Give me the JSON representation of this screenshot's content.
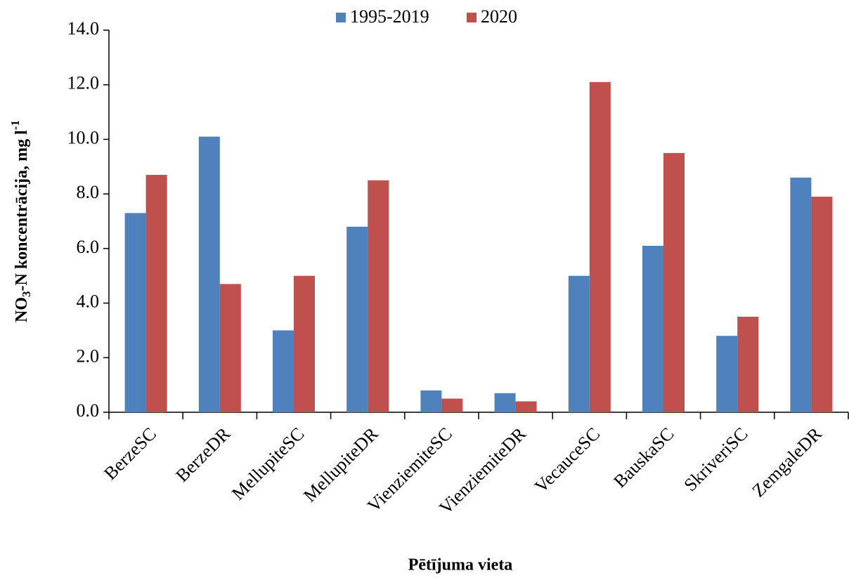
{
  "chart_data": {
    "type": "bar",
    "categories": [
      "BerzeSC",
      "BerzeDR",
      "MellupiteSC",
      "MellupiteDR",
      "VienziemiteSC",
      "VienziemiteDR",
      "VecauceSC",
      "BauskaSC",
      "SkriveriSC",
      "ZemgaleDR"
    ],
    "series": [
      {
        "name": "1995-2019",
        "color": "#4f81bd",
        "values": [
          7.3,
          10.1,
          3.0,
          6.8,
          0.8,
          0.7,
          5.0,
          6.1,
          2.8,
          8.6
        ]
      },
      {
        "name": "2020",
        "color": "#c0504d",
        "values": [
          8.7,
          4.7,
          5.0,
          8.5,
          0.5,
          0.4,
          12.1,
          9.5,
          3.5,
          7.9
        ]
      }
    ],
    "ylim": [
      0,
      14
    ],
    "yticks": [
      {
        "value": 0,
        "label": "0.0"
      },
      {
        "value": 2,
        "label": "2.0"
      },
      {
        "value": 4,
        "label": "4.0"
      },
      {
        "value": 6,
        "label": "6.0"
      },
      {
        "value": 8,
        "label": "8.0"
      },
      {
        "value": 10,
        "label": "10.0"
      },
      {
        "value": 12,
        "label": "12.0"
      },
      {
        "value": 14,
        "label": "14.0"
      }
    ],
    "x_label": "Pētījuma vieta",
    "y_label": [
      "NO",
      "3",
      "-N koncentrācija, mg l",
      "-1"
    ],
    "legend": "top",
    "grid": false
  }
}
